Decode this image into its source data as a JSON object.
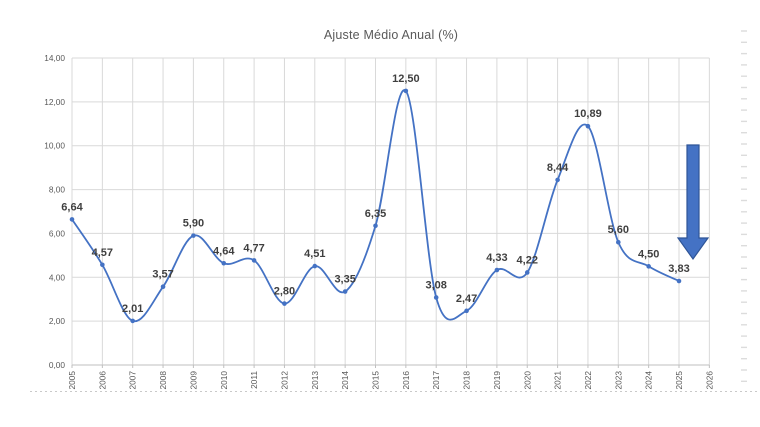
{
  "chart_data": {
    "type": "line",
    "title": "Ajuste Médio Anual (%)",
    "xlabel": "",
    "ylabel": "",
    "categories": [
      "2005",
      "2006",
      "2007",
      "2008",
      "2009",
      "2010",
      "2011",
      "2012",
      "2013",
      "2014",
      "2015",
      "2016",
      "2017",
      "2018",
      "2019",
      "2020",
      "2021",
      "2022",
      "2023",
      "2024",
      "2025",
      "2026"
    ],
    "values": [
      6.64,
      4.57,
      2.01,
      3.57,
      5.9,
      4.64,
      4.77,
      2.8,
      4.51,
      3.35,
      6.35,
      12.5,
      3.08,
      2.47,
      4.33,
      4.22,
      8.44,
      10.89,
      5.6,
      4.5,
      3.83,
      null
    ],
    "point_labels": [
      "6,64",
      "4,57",
      "2,01",
      "3,57",
      "5,90",
      "4,64",
      "4,77",
      "2,80",
      "4,51",
      "3,35",
      "6,35",
      "12,50",
      "3,08",
      "2,47",
      "4,33",
      "4,22",
      "8,44",
      "10,89",
      "5,60",
      "4,50",
      "3,83"
    ],
    "y_ticks": [
      "0,00",
      "2,00",
      "4,00",
      "6,00",
      "8,00",
      "10,00",
      "12,00",
      "14,00"
    ],
    "ylim": [
      0,
      14
    ],
    "y_step": 2,
    "grid": true,
    "legend_position": "none",
    "smooth": true,
    "markers": true
  },
  "annotations": {
    "down_arrow": {
      "meaning": "downward trend arrow near 2025",
      "fill": "#4472C4",
      "stroke": "#2F5597"
    }
  },
  "colors": {
    "line": "#4472C4",
    "marker": "#4472C4",
    "data_label": "#3F3F3F",
    "axis_label": "#595959",
    "gridline": "#D9D9D9",
    "axis_line": "#BFBFBF",
    "title": "#595959",
    "minor_dash": "#DCDCDC",
    "bottom_rule": "#C9C9C9",
    "background": "#FFFFFF"
  }
}
